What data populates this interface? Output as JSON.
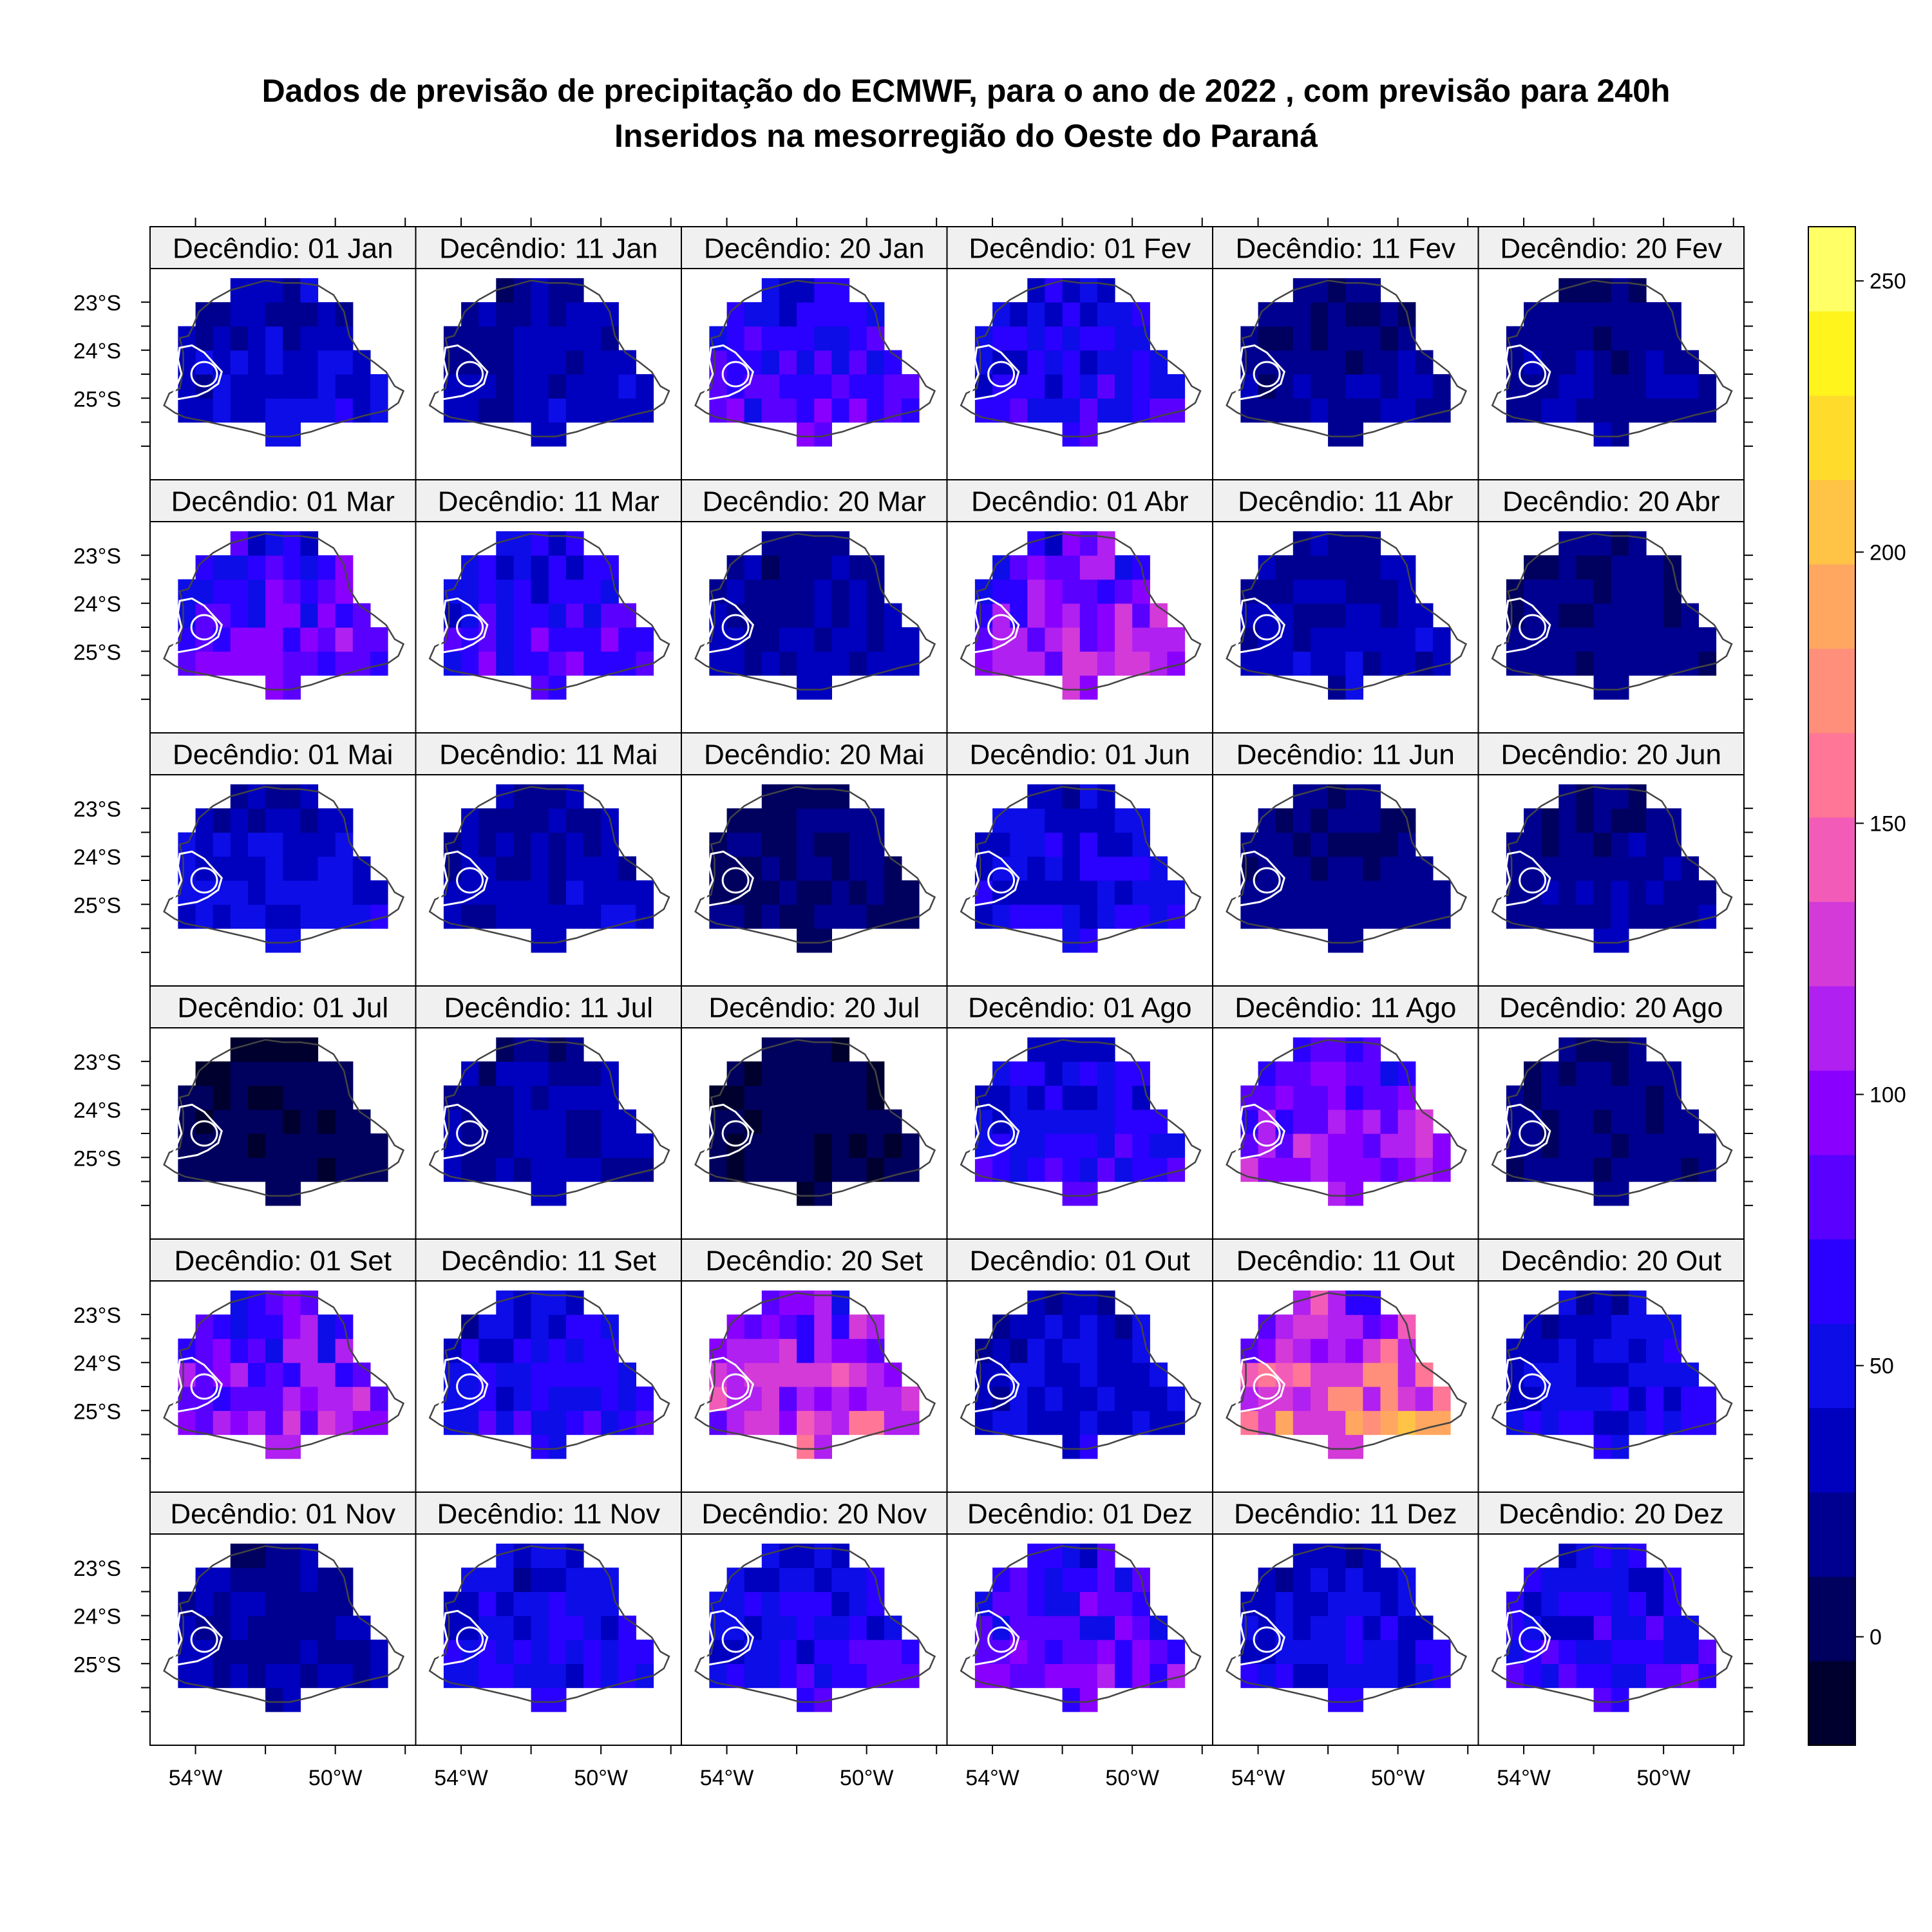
{
  "chart_data": {
    "type": "heatmap",
    "title": "Dados de previsão de precipitação do ECMWF, para o ano de  2022 , com previsão para 240h",
    "subtitle": "Inseridos na mesorregião do Oeste do Paraná",
    "layout": {
      "rows": 6,
      "cols": 6
    },
    "panel_titles": [
      "Decêndio: 01 Jan",
      "Decêndio: 11 Jan",
      "Decêndio: 20 Jan",
      "Decêndio: 01 Fev",
      "Decêndio: 11 Fev",
      "Decêndio: 20 Fev",
      "Decêndio: 01 Mar",
      "Decêndio: 11 Mar",
      "Decêndio: 20 Mar",
      "Decêndio: 01 Abr",
      "Decêndio: 11 Abr",
      "Decêndio: 20 Abr",
      "Decêndio: 01 Mai",
      "Decêndio: 11 Mai",
      "Decêndio: 20 Mai",
      "Decêndio: 01 Jun",
      "Decêndio: 11 Jun",
      "Decêndio: 20 Jun",
      "Decêndio: 01 Jul",
      "Decêndio: 11 Jul",
      "Decêndio: 20 Jul",
      "Decêndio: 01 Ago",
      "Decêndio: 11 Ago",
      "Decêndio: 20 Ago",
      "Decêndio: 01 Set",
      "Decêndio: 11 Set",
      "Decêndio: 20 Set",
      "Decêndio: 01 Out",
      "Decêndio: 11 Out",
      "Decêndio: 20 Out",
      "Decêndio: 01 Nov",
      "Decêndio: 11 Nov",
      "Decêndio: 20 Nov",
      "Decêndio: 01 Dez",
      "Decêndio: 11 Dez",
      "Decêndio: 20 Dez"
    ],
    "panel_mean_precipitation": [
      40,
      30,
      65,
      55,
      20,
      20,
      75,
      65,
      25,
      95,
      30,
      15,
      40,
      30,
      10,
      50,
      15,
      20,
      3,
      25,
      2,
      55,
      95,
      15,
      90,
      55,
      110,
      40,
      135,
      45,
      25,
      50,
      55,
      75,
      45,
      60
    ],
    "x_axis": {
      "ticks": [
        -54,
        -50
      ],
      "tick_labels": [
        "54°W",
        "50°W"
      ],
      "range": [
        -55.3,
        -47.7
      ]
    },
    "y_axis": {
      "ticks": [
        -23,
        -24,
        -25
      ],
      "tick_labels": [
        "23°S",
        "24°S",
        "25°S"
      ],
      "range": [
        -26.7,
        -22.3
      ]
    },
    "colorbar": {
      "range": [
        -20,
        260
      ],
      "ticks": [
        0,
        50,
        100,
        150,
        200,
        250
      ],
      "tick_labels": [
        "0",
        "50",
        "100",
        "150",
        "200",
        "250"
      ],
      "colors": [
        "#00002e",
        "#00005e",
        "#000090",
        "#0000bf",
        "#0d0de8",
        "#2a00ff",
        "#5a00ff",
        "#8a00ff",
        "#b020f0",
        "#d33ad8",
        "#f25cb8",
        "#ff7696",
        "#ff8e7a",
        "#ffa760",
        "#ffc346",
        "#ffdc2c",
        "#fff41c",
        "#ffff66"
      ]
    },
    "grid": false,
    "legend_position": "right"
  }
}
